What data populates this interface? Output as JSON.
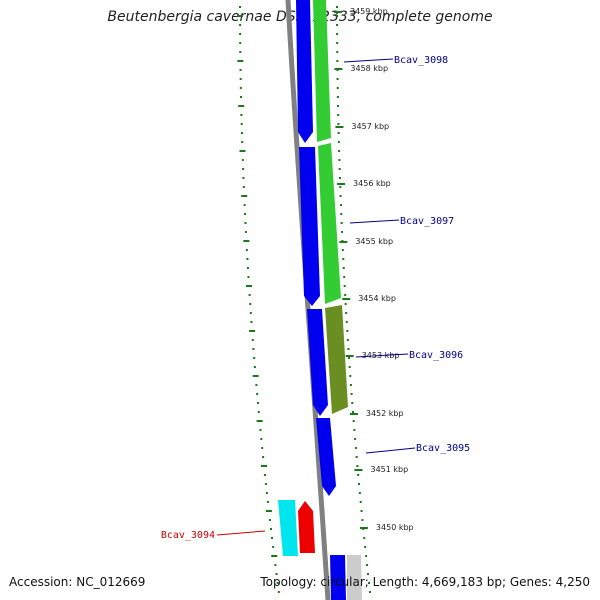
{
  "title": "Beutenbergia cavernae DSM 12333, complete genome",
  "accession": "Accession: NC_012669",
  "topology": "Topology: circular; Length: 4,669,183 bp; Genes: 4,250",
  "kbp_ticks": [
    {
      "label": "3459 kbp",
      "faded": true
    },
    {
      "label": "3458 kbp"
    },
    {
      "label": "3457 kbp"
    },
    {
      "label": "3456 kbp"
    },
    {
      "label": "3455 kbp"
    },
    {
      "label": "3454 kbp"
    },
    {
      "label": "3453 kbp"
    },
    {
      "label": "3452 kbp"
    },
    {
      "label": "3451 kbp"
    },
    {
      "label": "3450 kbp"
    }
  ],
  "genes": [
    {
      "label": "Bcav_3098",
      "color": "#00008b"
    },
    {
      "label": "Bcav_3097",
      "color": "#00008b"
    },
    {
      "label": "Bcav_3096",
      "color": "#00008b"
    },
    {
      "label": "Bcav_3095",
      "color": "#00008b"
    },
    {
      "label": "Bcav_3094",
      "color": "#cc0000"
    }
  ],
  "colors": {
    "backbone": "#808080",
    "cds_blue": "#0000ee",
    "cds_green": "#33cc33",
    "cds_olive": "#6b8e23",
    "cds_cyan": "#00e5ee",
    "cds_red": "#ee0000",
    "gc_skew": "#1a7a1a",
    "tick": "#1a7a1a"
  }
}
